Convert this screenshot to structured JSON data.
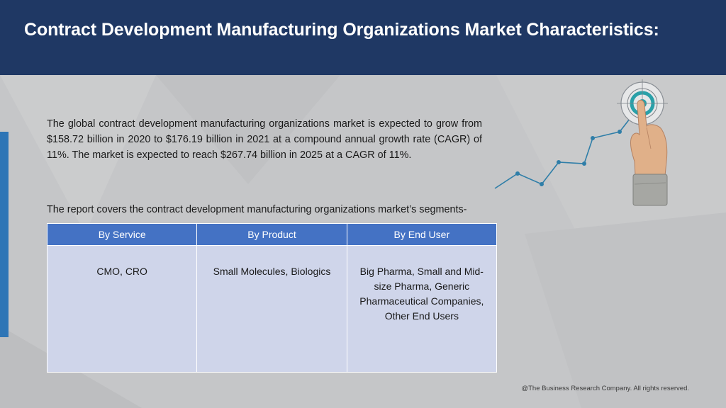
{
  "header": {
    "title": "Contract Development Manufacturing Organizations Market Characteristics:"
  },
  "body": {
    "paragraph": "The global contract development manufacturing organizations market is expected to grow from $158.72 billion in 2020 to $176.19 billion in 2021 at a compound annual growth rate (CAGR) of 11%. The market is expected to reach $267.74 billion in 2025 at a CAGR of 11%.",
    "segments_intro": "The report covers the contract development manufacturing organizations market’s segments-"
  },
  "segments_table": {
    "headers": [
      "By Service",
      "By Product",
      "By End User"
    ],
    "rows": [
      [
        "CMO, CRO",
        "Small Molecules, Biologics",
        "Big Pharma, Small and Mid-size Pharma, Generic Pharmaceutical Companies, Other End Users"
      ]
    ]
  },
  "colors": {
    "header_bg": "#1f3864",
    "accent_blue": "#2e75b6",
    "table_header": "#4472c4",
    "table_cell": "#cfd5ea"
  },
  "icons": [
    "target-icon",
    "pointing-hand-icon",
    "growth-line-icon"
  ],
  "footer": {
    "copyright": "@The Business Research Company. All rights reserved."
  }
}
